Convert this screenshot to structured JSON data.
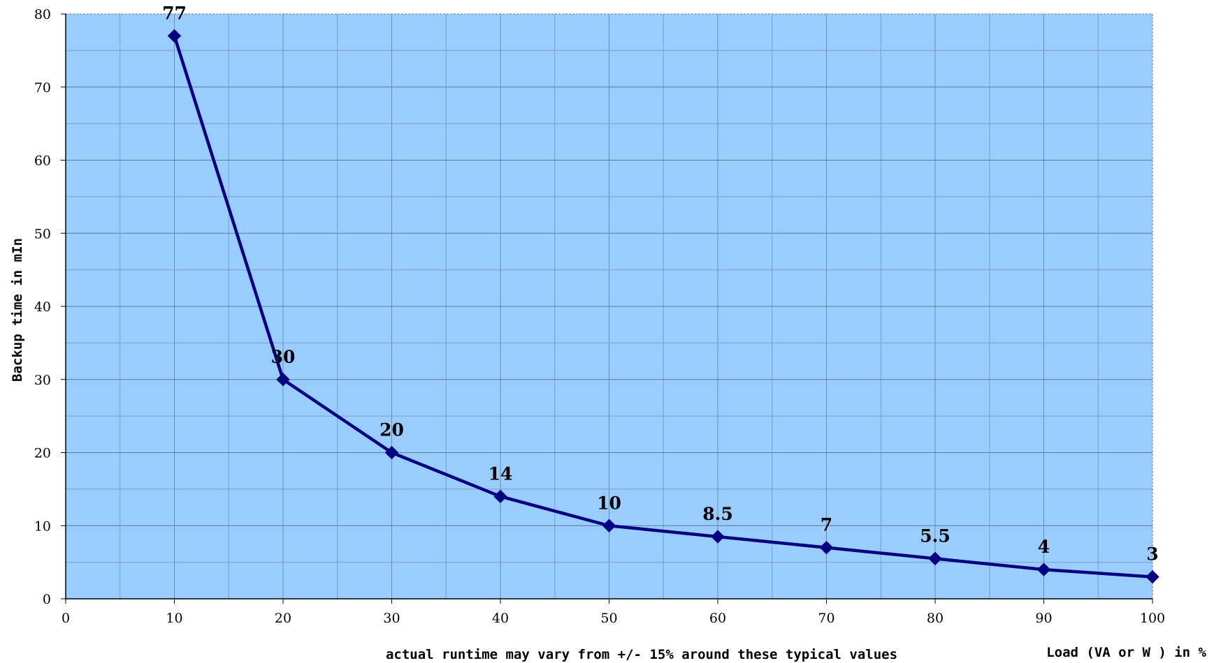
{
  "chart_data": {
    "type": "line",
    "x": [
      10,
      20,
      30,
      40,
      50,
      60,
      70,
      80,
      90,
      100
    ],
    "series": [
      {
        "values": [
          77,
          30,
          20,
          14,
          10,
          8.5,
          7,
          5.5,
          4,
          3
        ],
        "color": "#000080"
      }
    ],
    "data_labels": [
      "77",
      "30",
      "20",
      "14",
      "10",
      "8.5",
      "7",
      "5.5",
      "4",
      "3"
    ],
    "xlim": [
      0,
      100
    ],
    "ylim": [
      0,
      80
    ],
    "x_ticks": [
      "0",
      "10",
      "20",
      "30",
      "40",
      "50",
      "60",
      "70",
      "80",
      "90",
      "100"
    ],
    "y_ticks": [
      "0",
      "10",
      "20",
      "30",
      "40",
      "50",
      "60",
      "70",
      "80"
    ],
    "xlabel": "Load (VA or W ) in %",
    "ylabel": "Backup time in mIn",
    "note": "actual runtime may vary from +/- 15% around these typical values",
    "grid": true,
    "plot_background": "#99CCFF",
    "marker": "diamond"
  }
}
